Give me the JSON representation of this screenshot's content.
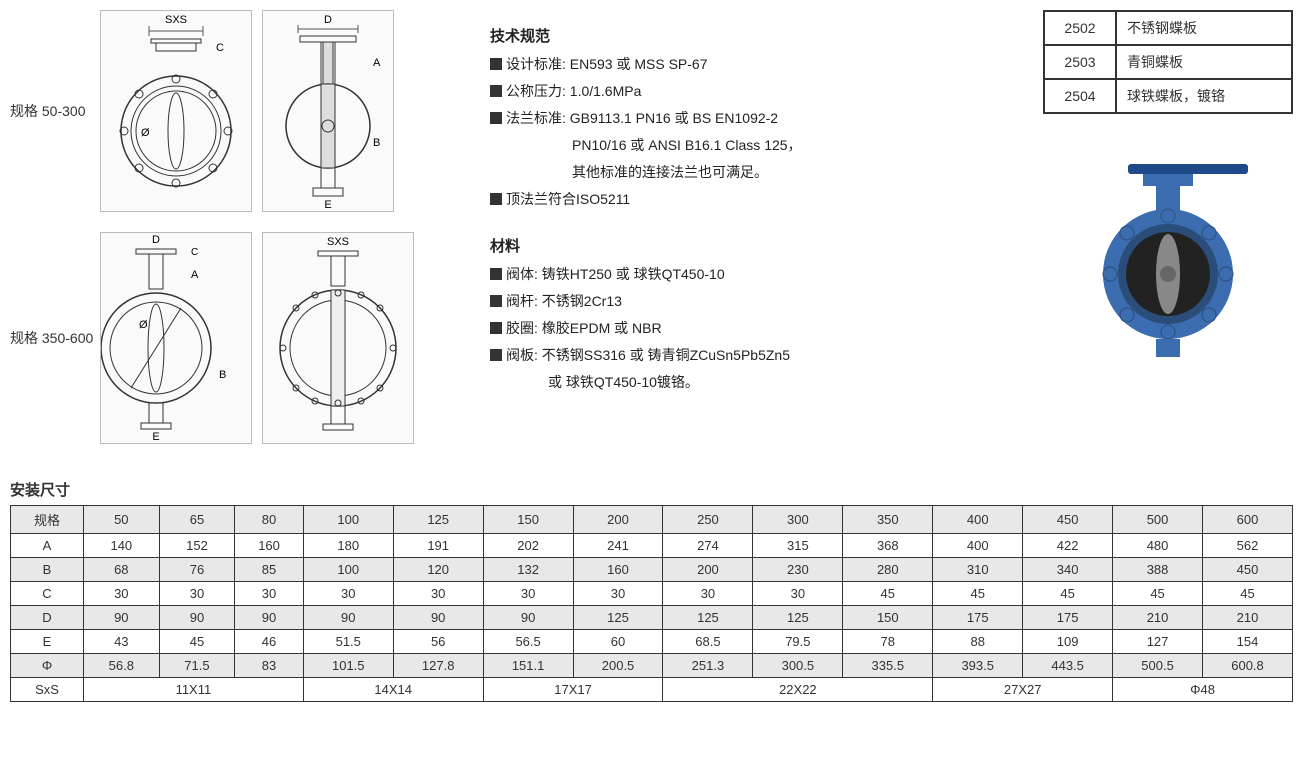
{
  "labels": {
    "spec1": "规格 50-300",
    "spec2": "规格 350-600",
    "install": "安装尺寸",
    "tech_spec": "技术规范",
    "materials": "材料"
  },
  "tech": {
    "design_label": "设计标准:",
    "design_val": " EN593 或 MSS SP-67",
    "pressure_label": "公称压力:",
    "pressure_val": " 1.0/1.6MPa",
    "flange_label": "法兰标准:",
    "flange_val": " GB9113.1 PN16 或 BS EN1092-2",
    "flange_line2": "PN10/16 或 ANSI B16.1 Class 125，",
    "flange_line3": "其他标准的连接法兰也可满足。",
    "top_flange": "顶法兰符合ISO5211"
  },
  "mat": {
    "body_label": "阀体:",
    "body_val": " 铸铁HT250 或 球铁QT450-10",
    "stem_label": "阀杆:",
    "stem_val": " 不锈钢2Cr13",
    "seal_label": "胶圈:",
    "seal_val": " 橡胶EPDM 或 NBR",
    "disc_label": "阀板:",
    "disc_val": " 不锈钢SS316 或 铸青铜ZCuSn5Pb5Zn5",
    "disc_line2": "或 球铁QT450-10镀铬。"
  },
  "codes": [
    {
      "code": "2502",
      "desc": "不锈钢蝶板"
    },
    {
      "code": "2503",
      "desc": "青铜蝶板"
    },
    {
      "code": "2504",
      "desc": "球铁蝶板，镀铬"
    }
  ],
  "dim": {
    "headers": [
      "规格",
      "50",
      "65",
      "80",
      "100",
      "125",
      "150",
      "200",
      "250",
      "300",
      "350",
      "400",
      "450",
      "500",
      "600"
    ],
    "rows": [
      [
        "A",
        "140",
        "152",
        "160",
        "180",
        "191",
        "202",
        "241",
        "274",
        "315",
        "368",
        "400",
        "422",
        "480",
        "562"
      ],
      [
        "B",
        "68",
        "76",
        "85",
        "100",
        "120",
        "132",
        "160",
        "200",
        "230",
        "280",
        "310",
        "340",
        "388",
        "450"
      ],
      [
        "C",
        "30",
        "30",
        "30",
        "30",
        "30",
        "30",
        "30",
        "30",
        "30",
        "45",
        "45",
        "45",
        "45",
        "45"
      ],
      [
        "D",
        "90",
        "90",
        "90",
        "90",
        "90",
        "90",
        "125",
        "125",
        "125",
        "150",
        "175",
        "175",
        "210",
        "210"
      ],
      [
        "E",
        "43",
        "45",
        "46",
        "51.5",
        "56",
        "56.5",
        "60",
        "68.5",
        "79.5",
        "78",
        "88",
        "109",
        "127",
        "154"
      ],
      [
        "Φ",
        "56.8",
        "71.5",
        "83",
        "101.5",
        "127.8",
        "151.1",
        "200.5",
        "251.3",
        "300.5",
        "335.5",
        "393.5",
        "443.5",
        "500.5",
        "600.8"
      ]
    ],
    "sxs": {
      "label": "SxS",
      "groups": [
        {
          "span": 3,
          "val": "11X11"
        },
        {
          "span": 2,
          "val": "14X14"
        },
        {
          "span": 2,
          "val": "17X17"
        },
        {
          "span": 3,
          "val": "22X22"
        },
        {
          "span": 2,
          "val": "27X27"
        },
        {
          "span": 2,
          "val": "Φ48"
        }
      ]
    }
  },
  "diag_labels": {
    "sxs": "SXS",
    "d": "D",
    "c": "C",
    "a": "A",
    "b": "B",
    "e": "E",
    "phi": "Ø"
  },
  "colors": {
    "valve_body": "#3b6db0",
    "valve_dark": "#2a4d7a",
    "handle": "#1e4a8a",
    "center": "#888"
  }
}
